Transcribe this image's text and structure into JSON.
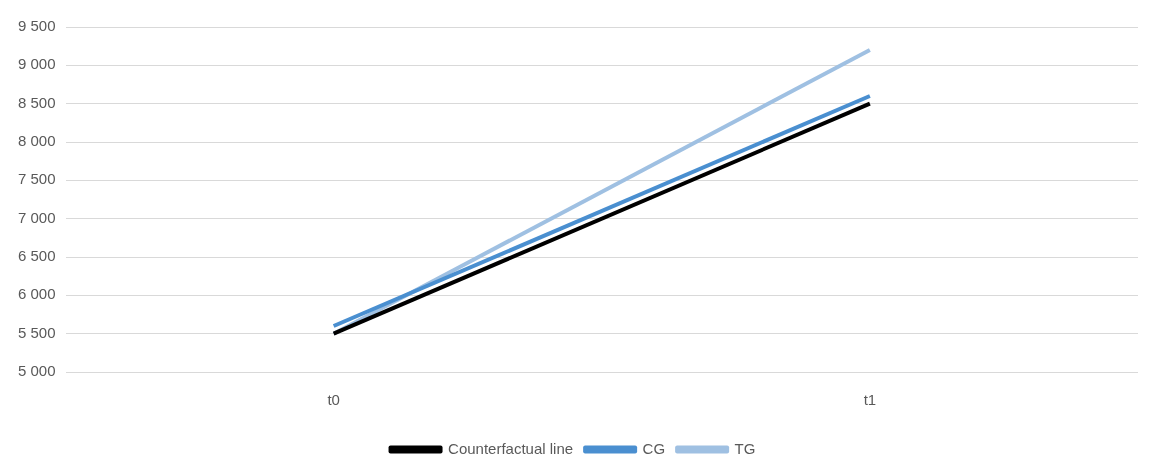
{
  "chart_data": {
    "type": "line",
    "categories": [
      "t0",
      "t1"
    ],
    "series": [
      {
        "name": "Counterfactual line",
        "color": "#000000",
        "values": [
          5500,
          8500
        ]
      },
      {
        "name": "CG",
        "color": "#4a8fd0",
        "values": [
          5600,
          8600
        ]
      },
      {
        "name": "TG",
        "color": "#9fc0e2",
        "values": [
          5500,
          9200
        ]
      }
    ],
    "ylim": [
      5000,
      9500
    ],
    "yticks": [
      {
        "value": 5000,
        "label": "5 000"
      },
      {
        "value": 5500,
        "label": "5 500"
      },
      {
        "value": 6000,
        "label": "6 000"
      },
      {
        "value": 6500,
        "label": "6 500"
      },
      {
        "value": 7000,
        "label": "7 000"
      },
      {
        "value": 7500,
        "label": "7 500"
      },
      {
        "value": 8000,
        "label": "8 000"
      },
      {
        "value": 8500,
        "label": "8 500"
      },
      {
        "value": 9000,
        "label": "9 000"
      },
      {
        "value": 9500,
        "label": "9 500"
      }
    ],
    "grid": "y",
    "legend": "bottom",
    "marker": "none",
    "line_style": "solid"
  }
}
